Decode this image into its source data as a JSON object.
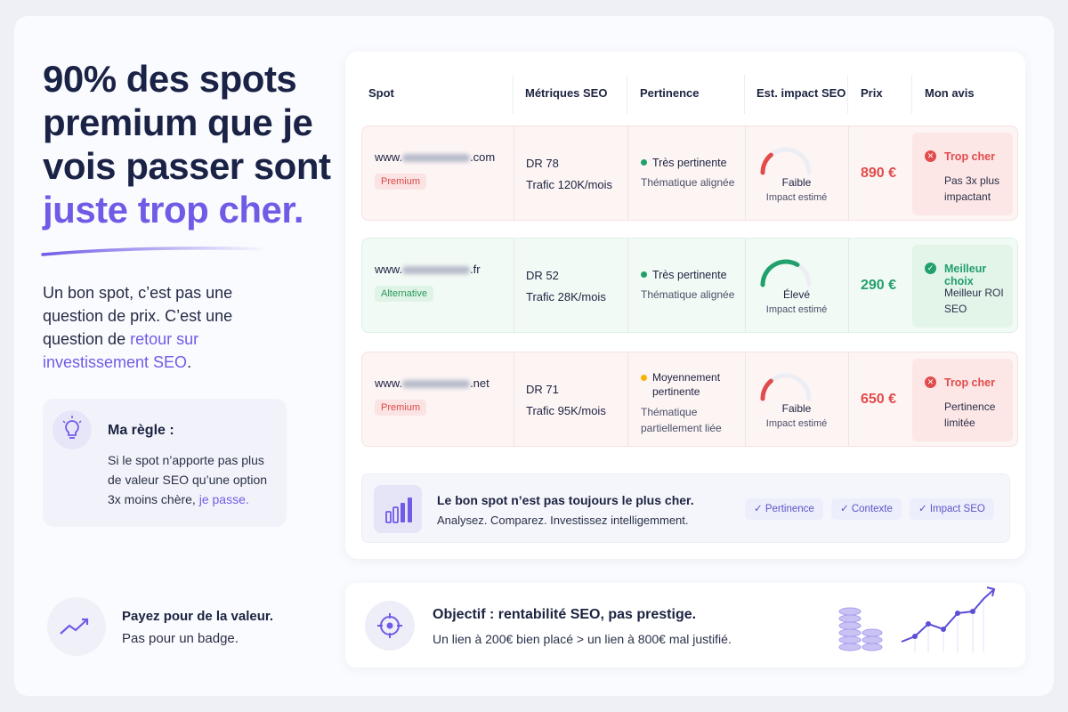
{
  "headline": {
    "text": "90% des spots premium que je vois passer sont",
    "highlight": "juste trop cher."
  },
  "intro": {
    "text": "Un bon spot, c’est pas une question de prix. C’est une question de ",
    "link": "retour sur investissement SEO",
    "end": "."
  },
  "rule": {
    "title": "Ma règle :",
    "text": "Si le spot n’apporte pas plus de valeur SEO qu’une option 3x moins chère, ",
    "highlight": "je passe."
  },
  "footer_left": {
    "title": "Payez pour de la valeur.",
    "text": "Pas pour un badge."
  },
  "table": {
    "headers": [
      "Spot",
      "Métriques SEO",
      "Pertinence",
      "Est. impact SEO",
      "Prix",
      "Mon avis"
    ],
    "rows": [
      {
        "domain_prefix": "www.",
        "domain_suffix": ".com",
        "tag": "Premium",
        "dr": "DR 78",
        "traffic": "Trafic 120K/mois",
        "relevance": "Très pertinente",
        "relevance_note": "Thématique alignée",
        "impact": "Faible",
        "impact_note": "Impact estimé",
        "price": "890 €",
        "verdict": "Trop cher",
        "verdict_note": "Pas 3x plus impactant"
      },
      {
        "domain_prefix": "www.",
        "domain_suffix": ".fr",
        "tag": "Alternative",
        "dr": "DR 52",
        "traffic": "Trafic 28K/mois",
        "relevance": "Très pertinente",
        "relevance_note": "Thématique alignée",
        "impact": "Élevé",
        "impact_note": "Impact estimé",
        "price": "290 €",
        "verdict": "Meilleur choix",
        "verdict_note": "Meilleur ROI SEO"
      },
      {
        "domain_prefix": "www.",
        "domain_suffix": ".net",
        "tag": "Premium",
        "dr": "DR 71",
        "traffic": "Trafic 95K/mois",
        "relevance": "Moyennement pertinente",
        "relevance_note": "Thématique partiellement liée",
        "impact": "Faible",
        "impact_note": "Impact estimé",
        "price": "650 €",
        "verdict": "Trop cher",
        "verdict_note": "Pertinence limitée"
      }
    ]
  },
  "summary": {
    "title": "Le bon spot n’est pas toujours le plus cher.",
    "text": "Analysez. Comparez. Investissez intelligemment.",
    "chips": [
      "Pertinence",
      "Contexte",
      "Impact SEO"
    ]
  },
  "objective": {
    "title": "Objectif : rentabilité SEO, pas prestige.",
    "text": "Un lien à 200€ bien placé > un lien à 800€ mal justifié."
  }
}
